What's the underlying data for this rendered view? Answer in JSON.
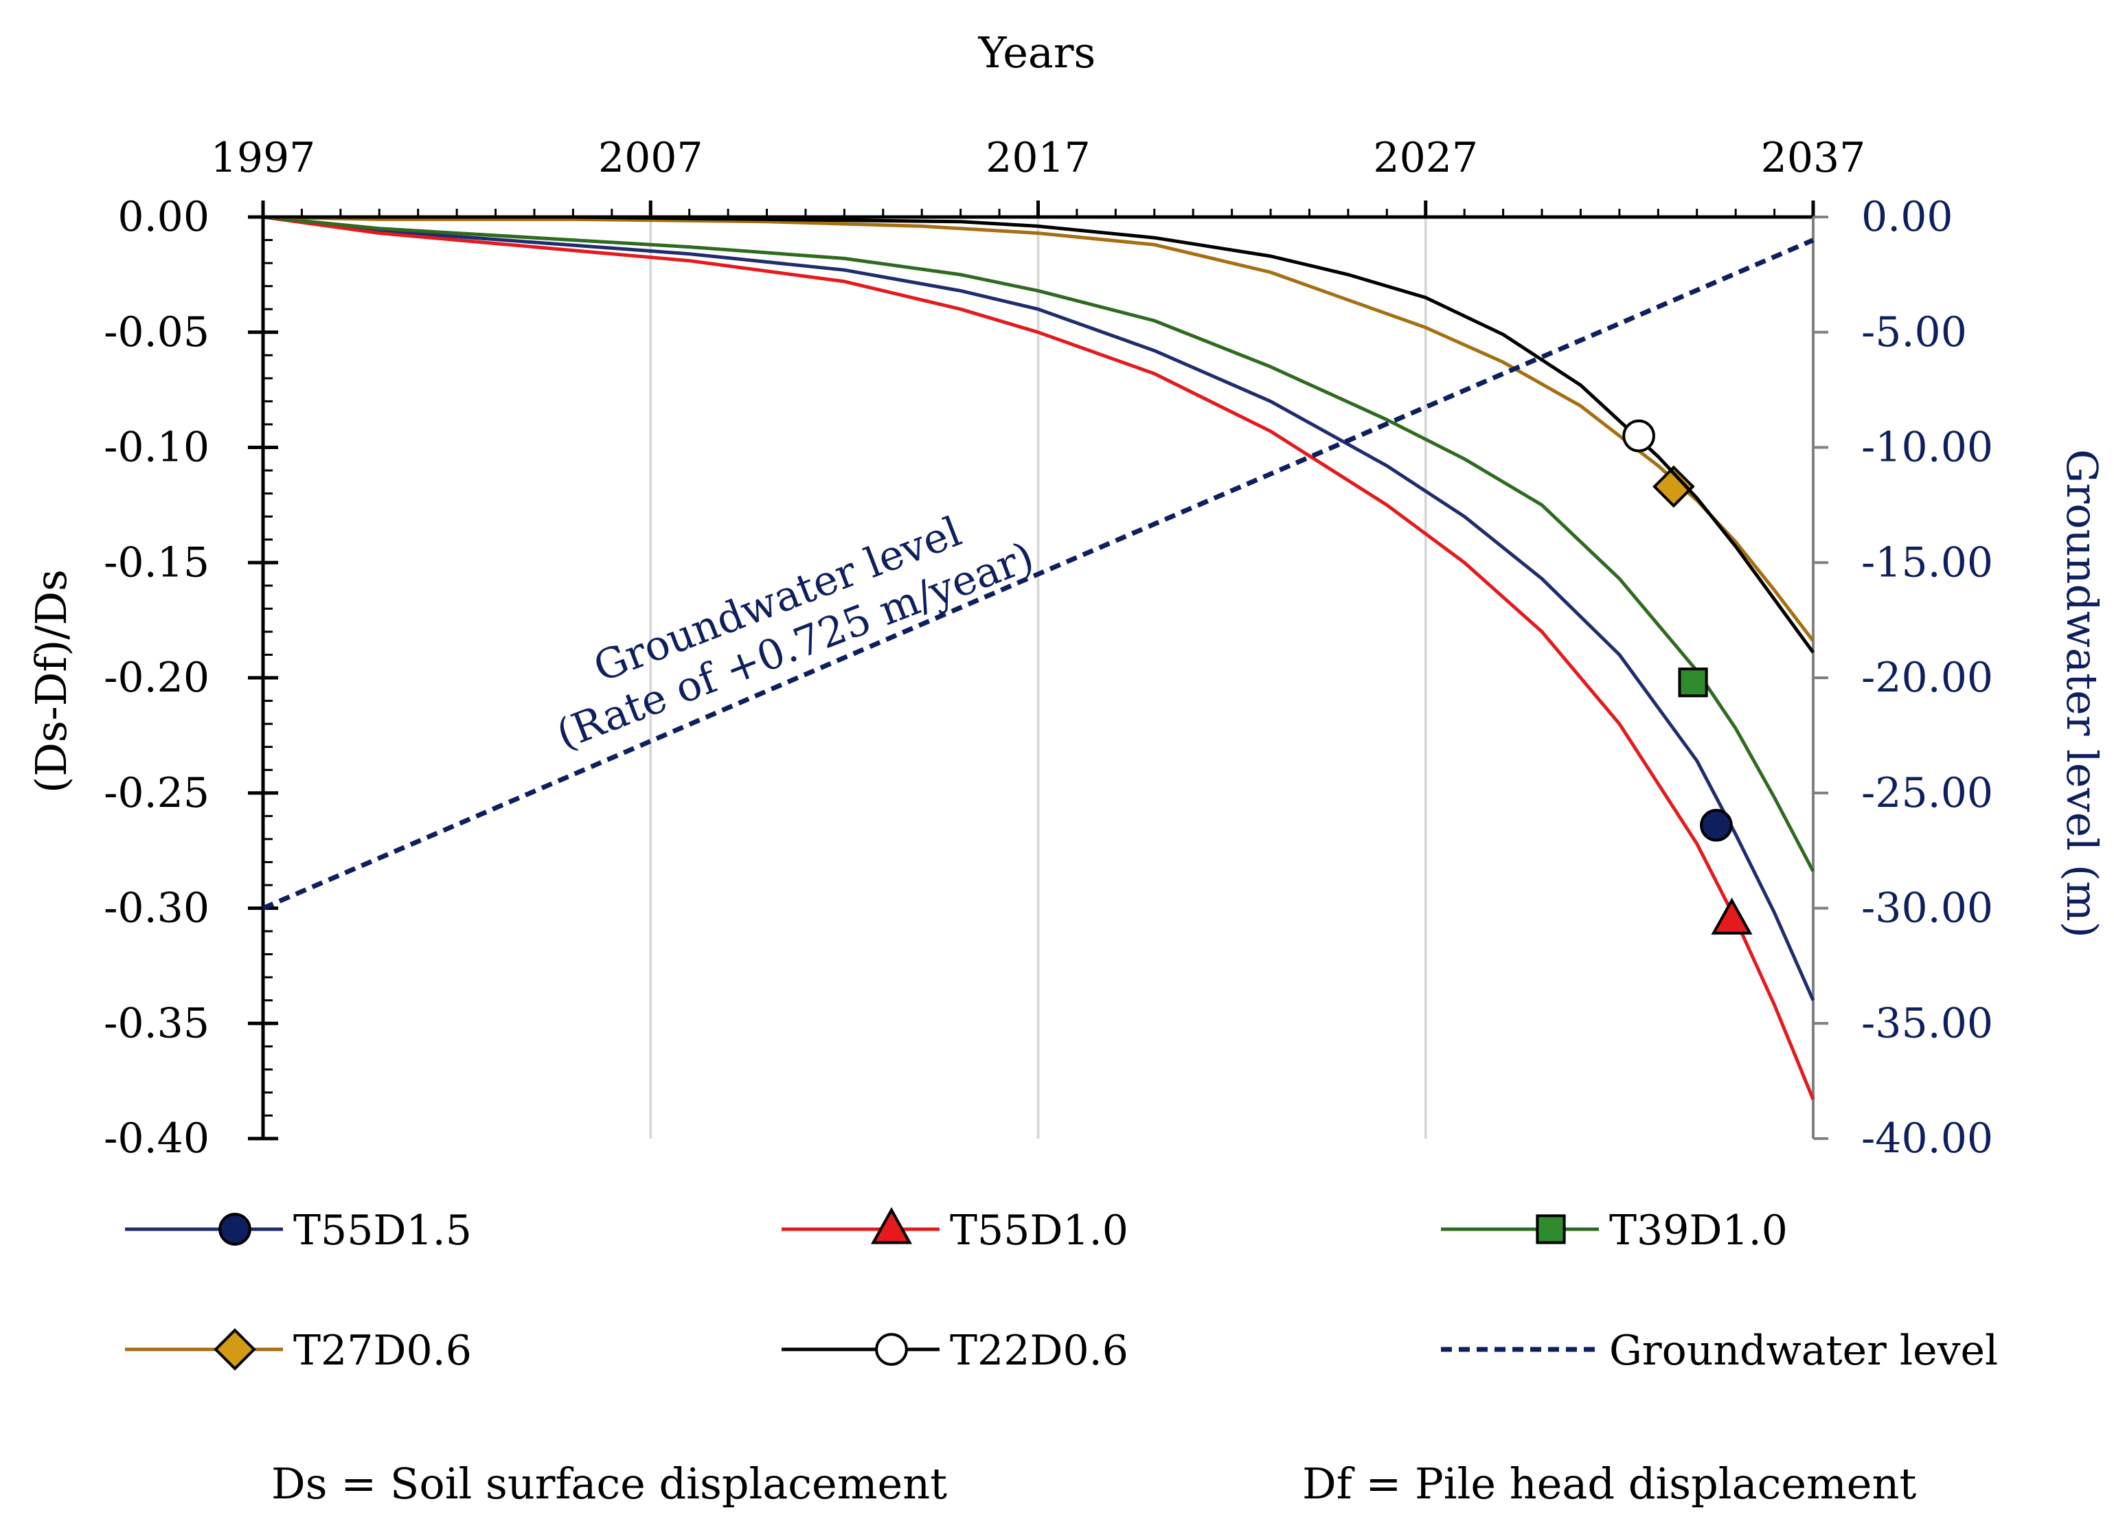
{
  "chart_data": {
    "type": "line",
    "x_axis": {
      "label": "Years",
      "position": "top",
      "range": [
        1997,
        2037
      ],
      "ticks": [
        1997,
        2007,
        2017,
        2027,
        2037
      ]
    },
    "y_axis_left": {
      "label": "(Ds-Df)/Ds",
      "range": [
        -0.4,
        0.0
      ],
      "ticks": [
        "0.00",
        "-0.05",
        "-0.10",
        "-0.15",
        "-0.20",
        "-0.25",
        "-0.30",
        "-0.35",
        "-0.40"
      ]
    },
    "y_axis_right": {
      "label": "Groundwater level (m)",
      "range": [
        -40.0,
        0.0
      ],
      "ticks": [
        "0.00",
        "-5.00",
        "-10.00",
        "-15.00",
        "-20.00",
        "-25.00",
        "-30.00",
        "-35.00",
        "-40.00"
      ]
    },
    "series": [
      {
        "name": "T55D1.5",
        "color": "#1f2d6e",
        "marker": "circle",
        "marker_fill": "#0d1f5e",
        "marker_at": [
          2034.5,
          -0.264
        ],
        "x": [
          1997,
          2000,
          2004,
          2008,
          2012,
          2015,
          2017,
          2020,
          2023,
          2026,
          2028,
          2030,
          2032,
          2034,
          2035,
          2036,
          2037
        ],
        "y": [
          0,
          -0.006,
          -0.011,
          -0.016,
          -0.023,
          -0.032,
          -0.04,
          -0.058,
          -0.08,
          -0.108,
          -0.13,
          -0.157,
          -0.19,
          -0.236,
          -0.268,
          -0.302,
          -0.34
        ]
      },
      {
        "name": "T55D1.0",
        "color": "#e41a1c",
        "marker": "triangle",
        "marker_fill": "#e41a1c",
        "marker_at": [
          2034.9,
          -0.305
        ],
        "x": [
          1997,
          2000,
          2004,
          2008,
          2012,
          2015,
          2017,
          2020,
          2023,
          2026,
          2028,
          2030,
          2032,
          2034,
          2035,
          2036,
          2037
        ],
        "y": [
          0,
          -0.007,
          -0.013,
          -0.019,
          -0.028,
          -0.04,
          -0.05,
          -0.068,
          -0.093,
          -0.125,
          -0.15,
          -0.18,
          -0.22,
          -0.272,
          -0.305,
          -0.342,
          -0.383
        ]
      },
      {
        "name": "T39D1.0",
        "color": "#2e6b1f",
        "marker": "square",
        "marker_fill": "#2e8b2e",
        "marker_at": [
          2033.9,
          -0.202
        ],
        "x": [
          1997,
          2000,
          2004,
          2008,
          2012,
          2015,
          2017,
          2020,
          2023,
          2026,
          2028,
          2030,
          2032,
          2034,
          2035,
          2036,
          2037
        ],
        "y": [
          0,
          -0.005,
          -0.009,
          -0.013,
          -0.018,
          -0.025,
          -0.032,
          -0.045,
          -0.065,
          -0.088,
          -0.105,
          -0.125,
          -0.157,
          -0.197,
          -0.222,
          -0.252,
          -0.284
        ]
      },
      {
        "name": "T27D0.6",
        "color": "#a56f12",
        "marker": "diamond",
        "marker_fill": "#d49a14",
        "marker_at": [
          2033.4,
          -0.117
        ],
        "x": [
          1997,
          2000,
          2005,
          2010,
          2014,
          2017,
          2020,
          2023,
          2025,
          2027,
          2029,
          2031,
          2033,
          2034,
          2035,
          2036,
          2037
        ],
        "y": [
          0,
          -0.001,
          -0.001,
          -0.002,
          -0.004,
          -0.007,
          -0.012,
          -0.024,
          -0.036,
          -0.048,
          -0.063,
          -0.082,
          -0.108,
          -0.123,
          -0.141,
          -0.162,
          -0.184
        ]
      },
      {
        "name": "T22D0.6",
        "color": "#000000",
        "marker": "circle-open",
        "marker_fill": "#ffffff",
        "marker_at": [
          2032.5,
          -0.095
        ],
        "x": [
          1997,
          2000,
          2005,
          2010,
          2015,
          2017,
          2020,
          2023,
          2025,
          2027,
          2029,
          2031,
          2033,
          2034,
          2035,
          2036,
          2037
        ],
        "y": [
          0,
          0,
          0,
          -0.001,
          -0.002,
          -0.004,
          -0.009,
          -0.017,
          -0.025,
          -0.035,
          -0.051,
          -0.073,
          -0.104,
          -0.122,
          -0.143,
          -0.166,
          -0.189
        ]
      },
      {
        "name": "Groundwater level",
        "color": "#0d1f5e",
        "style": "dashed",
        "axis": "right",
        "x": [
          1997,
          2037
        ],
        "y": [
          -30.0,
          -1.0
        ]
      }
    ],
    "annotation": {
      "line1": "Groundwater level",
      "line2": "(Rate of +0.725 m/year)"
    },
    "notes": [
      "Ds = Soil surface displacement",
      "Df = Pile head displacement"
    ],
    "grid": true,
    "legend": "bottom"
  }
}
